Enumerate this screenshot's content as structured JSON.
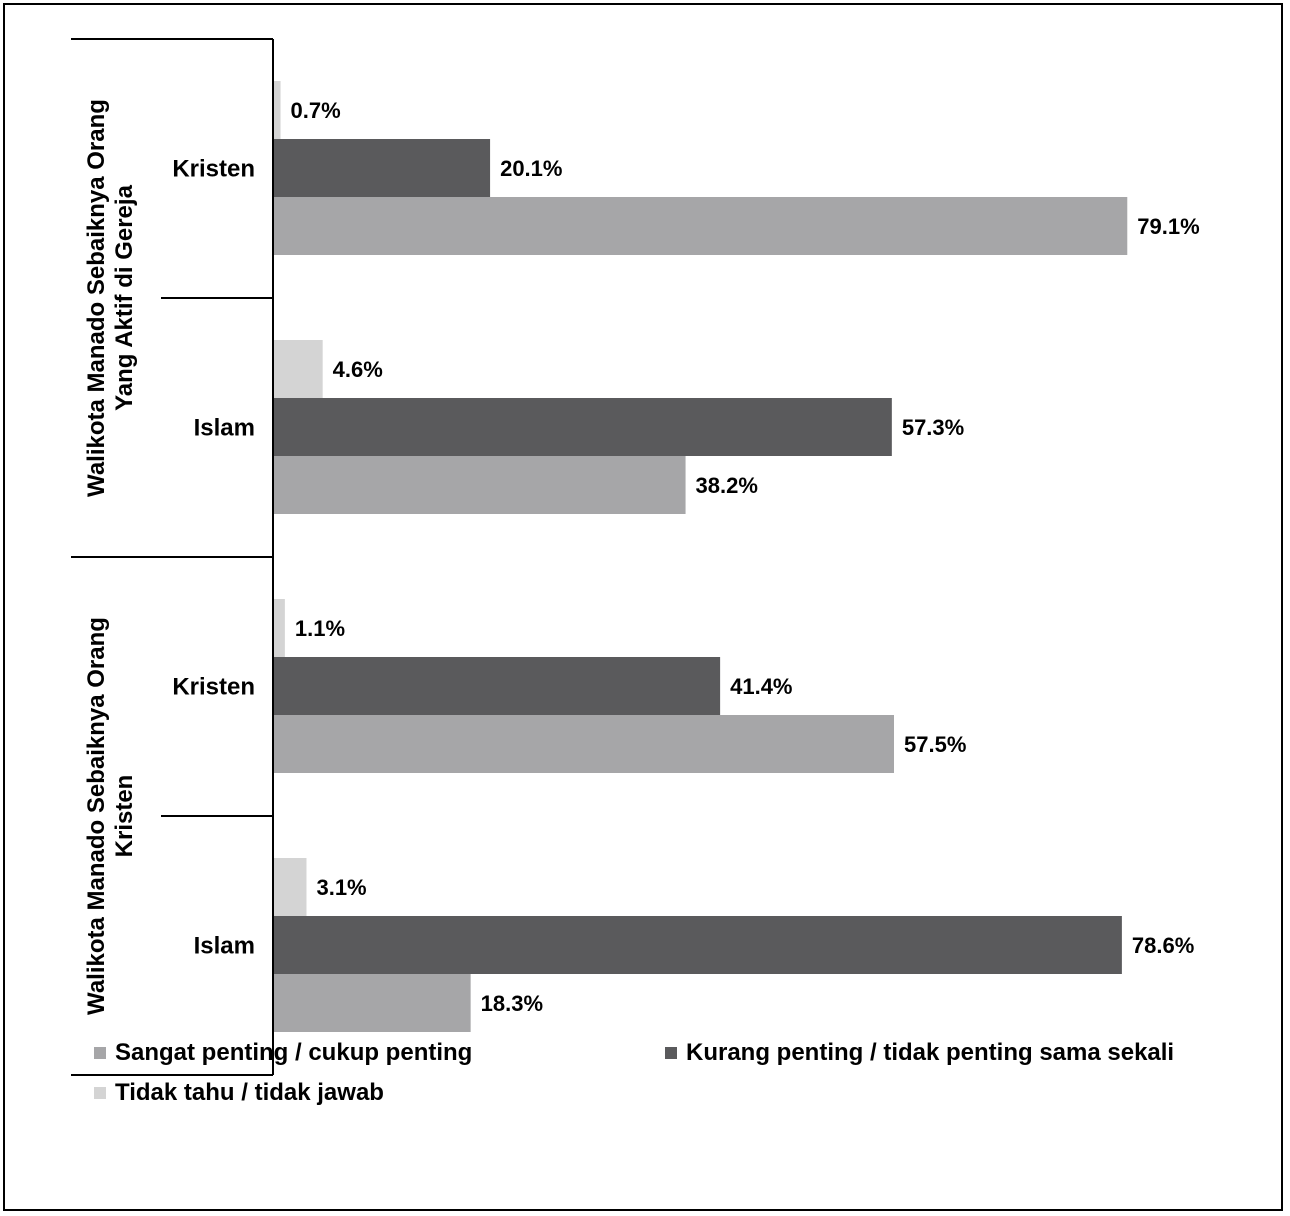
{
  "chart_data": {
    "type": "bar",
    "orientation": "horizontal",
    "xlim": [
      0,
      100
    ],
    "groups": [
      {
        "label": "Walikota Manado Sebaiknya Orang Yang Aktif di Gereja",
        "label_lines": [
          "Walikota Manado Sebaiknya Orang",
          "Yang Aktif di Gereja"
        ],
        "categories": [
          {
            "label": "Kristen",
            "values": {
              "tidak_tahu": 0.7,
              "kurang": 20.1,
              "sangat": 79.1
            },
            "value_labels": {
              "tidak_tahu": "0.7%",
              "kurang": "20.1%",
              "sangat": "79.1%"
            }
          },
          {
            "label": "Islam",
            "values": {
              "tidak_tahu": 4.6,
              "kurang": 57.3,
              "sangat": 38.2
            },
            "value_labels": {
              "tidak_tahu": "4.6%",
              "kurang": "57.3%",
              "sangat": "38.2%"
            }
          }
        ]
      },
      {
        "label": "Walikota Manado Sebaiknya Orang Kristen",
        "label_lines": [
          "Walikota Manado Sebaiknya Orang",
          "Kristen"
        ],
        "categories": [
          {
            "label": "Kristen",
            "values": {
              "tidak_tahu": 1.1,
              "kurang": 41.4,
              "sangat": 57.5
            },
            "value_labels": {
              "tidak_tahu": "1.1%",
              "kurang": "41.4%",
              "sangat": "57.5%"
            }
          },
          {
            "label": "Islam",
            "values": {
              "tidak_tahu": 3.1,
              "kurang": 78.6,
              "sangat": 18.3
            },
            "value_labels": {
              "tidak_tahu": "3.1%",
              "kurang": "78.6%",
              "sangat": "18.3%"
            }
          }
        ]
      }
    ],
    "series": [
      {
        "key": "tidak_tahu",
        "name": "Tidak tahu / tidak jawab",
        "color": "#d4d4d4"
      },
      {
        "key": "kurang",
        "name": "Kurang penting / tidak penting sama sekali",
        "color": "#5a5a5c"
      },
      {
        "key": "sangat",
        "name": "Sangat penting / cukup penting",
        "color": "#a6a6a8"
      }
    ],
    "legend_position": "bottom",
    "grid": false
  },
  "legend": {
    "sangat_label": "Sangat penting / cukup penting",
    "kurang_label": "Kurang penting / tidak penting sama sekali",
    "tidak_tahu_label": "Tidak tahu / tidak jawab",
    "colors": {
      "sangat": "#a6a6a8",
      "kurang": "#5a5a5c",
      "tidak_tahu": "#d4d4d4"
    }
  }
}
